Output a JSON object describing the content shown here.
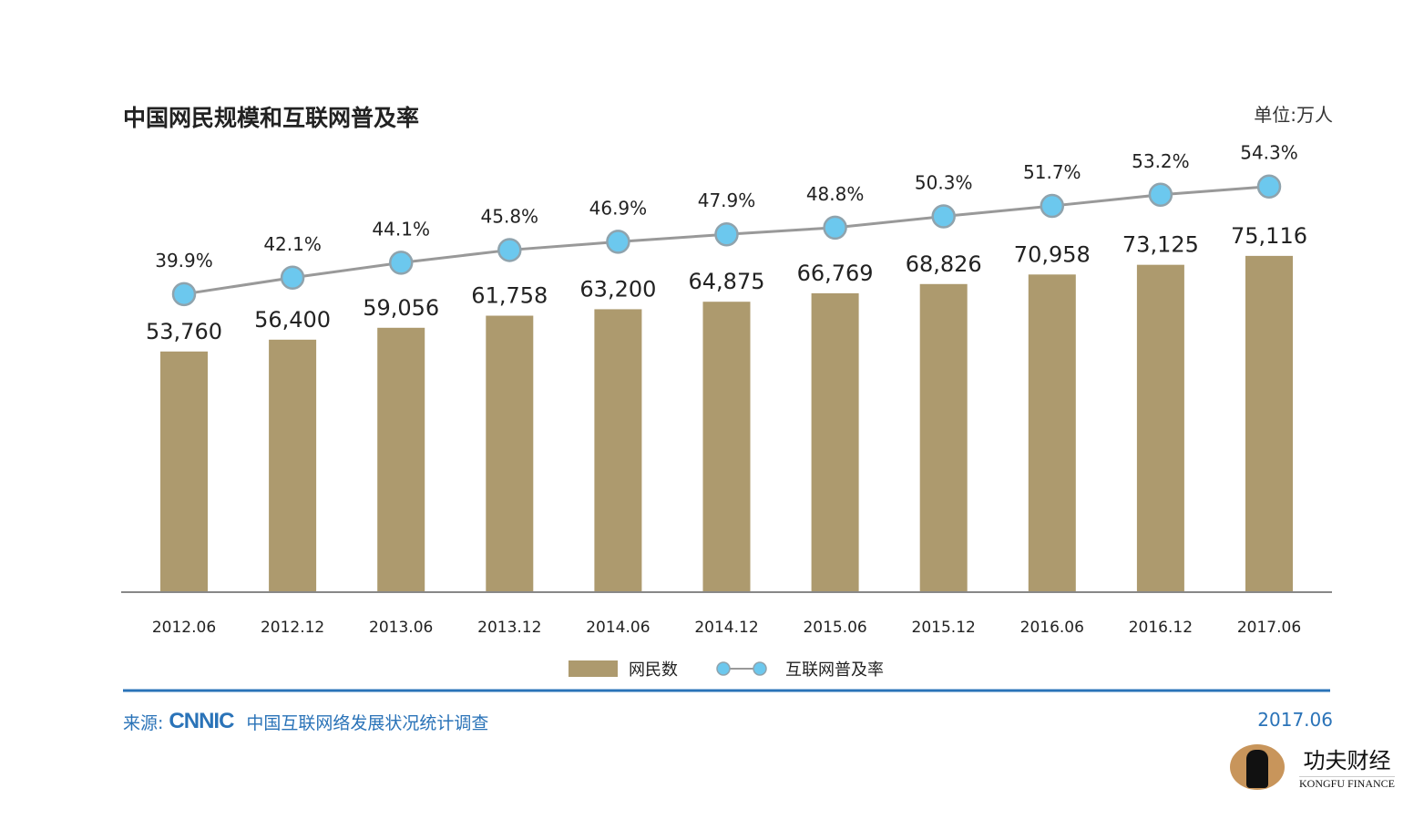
{
  "chart_data": {
    "type": "bar+line",
    "title": "中国网民规模和互联网普及率",
    "unit": "单位:万人",
    "categories": [
      "2012.06",
      "2012.12",
      "2013.06",
      "2013.12",
      "2014.06",
      "2014.12",
      "2015.06",
      "2015.12",
      "2016.06",
      "2016.12",
      "2017.06"
    ],
    "series": [
      {
        "name": "网民数",
        "type": "bar",
        "color": "#ad9a6e",
        "values": [
          53760,
          56400,
          59056,
          61758,
          63200,
          64875,
          66769,
          68826,
          70958,
          73125,
          75116
        ],
        "labels": [
          "53,760",
          "56,400",
          "59,056",
          "61,758",
          "63,200",
          "64,875",
          "66,769",
          "68,826",
          "70,958",
          "73,125",
          "75,116"
        ]
      },
      {
        "name": "互联网普及率",
        "type": "line",
        "color": "#6cc8ee",
        "line_color": "#999999",
        "values": [
          39.9,
          42.1,
          44.1,
          45.8,
          46.9,
          47.9,
          48.8,
          50.3,
          51.7,
          53.2,
          54.3
        ],
        "labels": [
          "39.9%",
          "42.1%",
          "44.1%",
          "45.8%",
          "46.9%",
          "47.9%",
          "48.8%",
          "50.3%",
          "51.7%",
          "53.2%",
          "54.3%"
        ]
      }
    ],
    "legend": "bottom-center",
    "grid": false
  },
  "footer": {
    "source_label": "来源:",
    "source_brand": "CNNIC",
    "source_text": "中国互联网络发展状况统计调查",
    "date": "2017.06",
    "accent": "#2a73b8"
  },
  "logo": {
    "cn": "功夫财经",
    "en": "KONGFU FINANCE"
  }
}
